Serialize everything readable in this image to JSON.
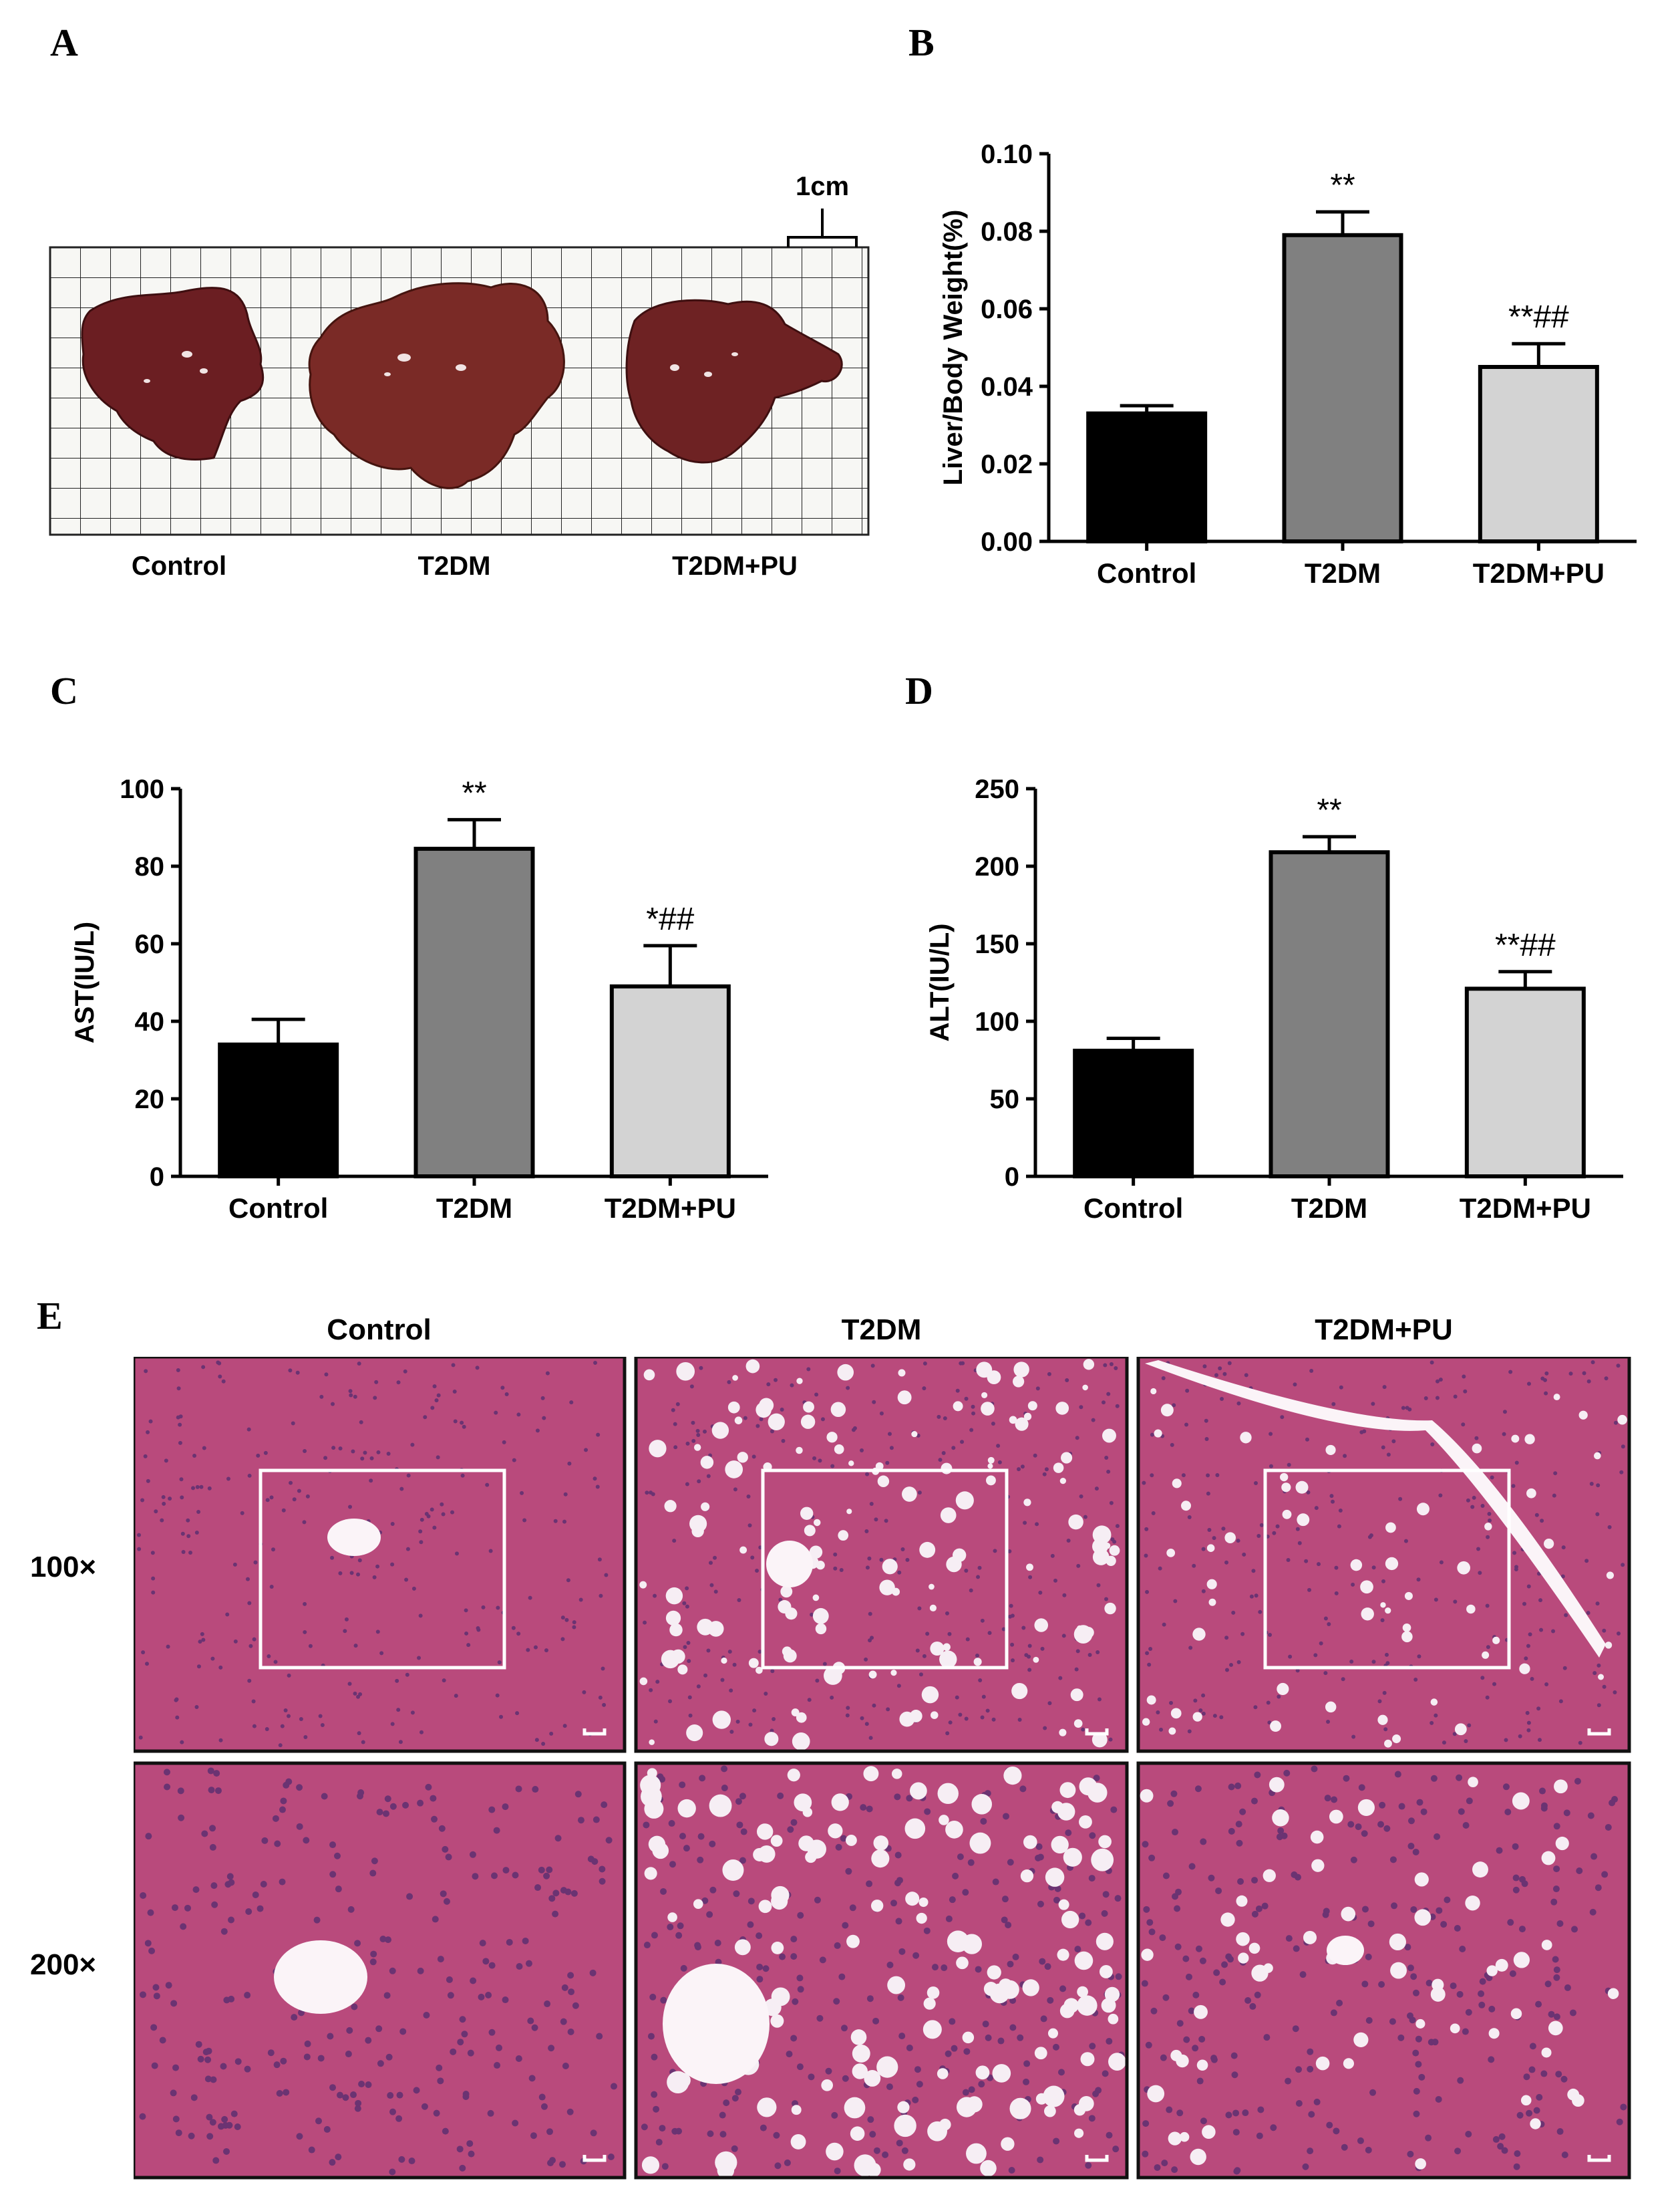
{
  "panel_labels": {
    "a": "A",
    "b": "B",
    "c": "C",
    "d": "D",
    "e": "E"
  },
  "panel_a": {
    "scale_label": "1cm",
    "group_labels": [
      "Control",
      "T2DM",
      "T2DM+PU"
    ]
  },
  "panel_e": {
    "column_labels": [
      "Control",
      "T2DM",
      "T2DM+PU"
    ],
    "row_labels": [
      "100×",
      "200×"
    ]
  },
  "colors": {
    "control": "#000000",
    "t2dm": "#808080",
    "t2dm_pu": "#d3d3d3",
    "tissue": "#b94a7c",
    "liver": "#6b1e22"
  },
  "chart_data": [
    {
      "id": "B",
      "type": "bar",
      "categories": [
        "Control",
        "T2DM",
        "T2DM+PU"
      ],
      "values": [
        0.033,
        0.079,
        0.045
      ],
      "errors": [
        0.002,
        0.006,
        0.006
      ],
      "annotations": [
        "",
        "**",
        "**##"
      ],
      "ylabel": "Liver/Body Weight(%)",
      "ylim": [
        0,
        0.1
      ],
      "yticks": [
        "0.00",
        "0.02",
        "0.04",
        "0.06",
        "0.08",
        "0.10"
      ],
      "ytick_values": [
        0,
        0.02,
        0.04,
        0.06,
        0.08,
        0.1
      ]
    },
    {
      "id": "C",
      "type": "bar",
      "categories": [
        "Control",
        "T2DM",
        "T2DM+PU"
      ],
      "values": [
        34,
        84.5,
        49
      ],
      "errors": [
        6.5,
        7.5,
        10.5
      ],
      "annotations": [
        "",
        "**",
        "*##"
      ],
      "ylabel": "AST(IU/L)",
      "ylim": [
        0,
        100
      ],
      "yticks": [
        "0",
        "20",
        "40",
        "60",
        "80",
        "100"
      ],
      "ytick_values": [
        0,
        20,
        40,
        60,
        80,
        100
      ]
    },
    {
      "id": "D",
      "type": "bar",
      "categories": [
        "Control",
        "T2DM",
        "T2DM+PU"
      ],
      "values": [
        81,
        209,
        121
      ],
      "errors": [
        8,
        10,
        11
      ],
      "annotations": [
        "",
        "**",
        "**##"
      ],
      "ylabel": "ALT(IU/L)",
      "ylim": [
        0,
        250
      ],
      "yticks": [
        "0",
        "50",
        "100",
        "150",
        "200",
        "250"
      ],
      "ytick_values": [
        0,
        50,
        100,
        150,
        200,
        250
      ]
    }
  ]
}
